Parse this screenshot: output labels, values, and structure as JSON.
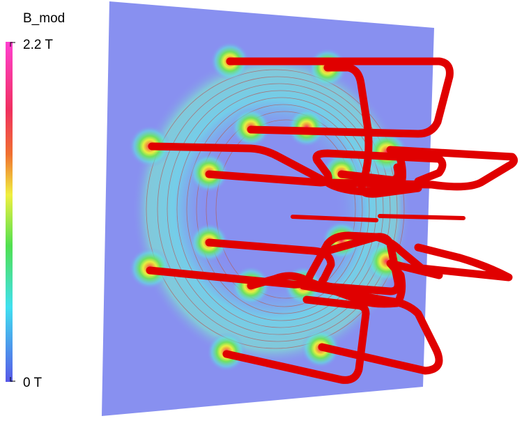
{
  "colorbar": {
    "title": "B_mod",
    "max_label": "2.2 T",
    "min_label": "0 T"
  }
}
